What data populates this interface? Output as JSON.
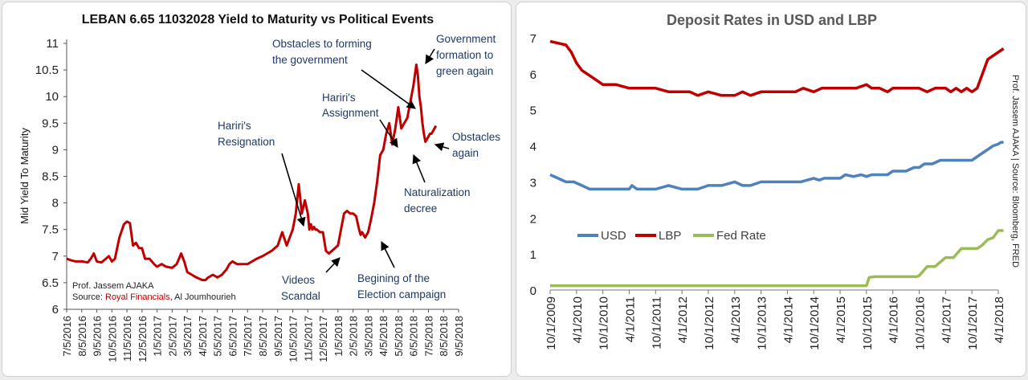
{
  "chart_data": [
    {
      "type": "line",
      "title": "LEBAN 6.65 11032028 Yield to Maturity vs Political Events",
      "ylabel": "Mid Yield To Maturity",
      "ylim": [
        6,
        11
      ],
      "yticks": [
        "11",
        "10.5",
        "10",
        "9.5",
        "9",
        "8.5",
        "8",
        "7.5",
        "7",
        "6.5",
        "6"
      ],
      "xtick_labels": [
        "7/5/2016",
        "8/5/2016",
        "9/5/2016",
        "10/5/2016",
        "11/5/2016",
        "12/5/2016",
        "1/5/2017",
        "2/5/2017",
        "3/5/2017",
        "4/5/2017",
        "5/5/2017",
        "6/5/2017",
        "7/5/2017",
        "8/5/2017",
        "9/5/2017",
        "10/5/2017",
        "11/5/2017",
        "12/5/2017",
        "1/5/2018",
        "2/5/2018",
        "3/5/2018",
        "4/5/2018",
        "5/5/2018",
        "6/5/2018",
        "7/5/2018",
        "8/5/2018",
        "9/5/2018"
      ],
      "series": [
        {
          "color": "#c00000",
          "x": [
            0,
            0.3,
            0.6,
            1,
            1.4,
            1.6,
            1.8,
            2,
            2.3,
            2.6,
            2.8,
            3,
            3.2,
            3.5,
            3.8,
            4,
            4.2,
            4.4,
            4.6,
            4.8,
            5,
            5.2,
            5.5,
            5.8,
            6,
            6.3,
            6.6,
            7,
            7.3,
            7.6,
            7.8,
            8,
            8.3,
            8.6,
            9,
            9.2,
            9.4,
            9.7,
            10,
            10.3,
            10.6,
            10.8,
            11,
            11.3,
            11.6,
            12,
            12.3,
            12.6,
            13,
            13.3,
            13.6,
            14,
            14.3,
            14.6,
            15,
            15.2,
            15.4,
            15.6,
            15.8,
            16,
            16.1,
            16.2,
            16.3,
            16.4,
            16.5,
            16.6,
            16.8,
            17,
            17.2,
            17.4,
            17.6,
            17.8,
            18,
            18.2,
            18.4,
            18.6,
            18.8,
            19,
            19.2,
            19.4,
            19.5,
            19.6,
            19.8,
            20,
            20.2,
            20.4,
            20.6,
            20.8,
            21,
            21.2,
            21.4,
            21.6,
            21.8,
            22,
            22.2,
            22.4,
            22.6,
            22.8,
            23,
            23.2,
            23.3,
            23.4,
            23.5,
            23.6,
            23.7,
            23.8,
            23.9,
            24,
            24.1,
            24.2,
            24.3,
            24.4,
            24.5
          ],
          "values": [
            6.95,
            6.92,
            6.9,
            6.9,
            6.88,
            6.95,
            7.05,
            6.9,
            6.88,
            6.95,
            7.0,
            6.9,
            6.95,
            7.35,
            7.6,
            7.65,
            7.62,
            7.2,
            7.25,
            7.15,
            7.15,
            6.95,
            6.95,
            6.85,
            6.8,
            6.85,
            6.8,
            6.78,
            6.85,
            7.05,
            6.9,
            6.7,
            6.65,
            6.6,
            6.55,
            6.55,
            6.6,
            6.65,
            6.6,
            6.65,
            6.75,
            6.85,
            6.9,
            6.85,
            6.85,
            6.85,
            6.9,
            6.95,
            7.0,
            7.05,
            7.1,
            7.2,
            7.45,
            7.2,
            7.5,
            7.8,
            8.35,
            7.8,
            8.05,
            7.8,
            7.5,
            7.6,
            7.5,
            7.55,
            7.5,
            7.5,
            7.45,
            7.45,
            7.1,
            7.05,
            7.1,
            7.15,
            7.2,
            7.5,
            7.8,
            7.85,
            7.8,
            7.8,
            7.75,
            7.5,
            7.4,
            7.45,
            7.35,
            7.45,
            7.7,
            8.0,
            8.4,
            8.9,
            9.0,
            9.3,
            9.5,
            9.1,
            9.4,
            9.8,
            9.4,
            9.5,
            9.6,
            9.9,
            10.2,
            10.6,
            10.4,
            10.0,
            9.8,
            9.5,
            9.3,
            9.15,
            9.2,
            9.25,
            9.3,
            9.3,
            9.35,
            9.4,
            9.45
          ]
        }
      ],
      "annotations": [
        {
          "lines": [
            "Hariri's",
            "Resignation"
          ]
        },
        {
          "lines": [
            "Videos",
            "Scandal"
          ]
        },
        {
          "lines": [
            "Hariri's",
            "Assignment"
          ]
        },
        {
          "lines": [
            "Obstacles to forming",
            "the government"
          ]
        },
        {
          "lines": [
            "Government",
            "formation to",
            "green again"
          ]
        },
        {
          "lines": [
            "Obstacles",
            "again"
          ]
        },
        {
          "lines": [
            "Naturalization",
            "decree"
          ]
        },
        {
          "lines": [
            "Begining of the",
            "Election campaign"
          ]
        }
      ],
      "credit": {
        "line1": "Prof. Jassem AJAKA",
        "source_prefix": "Source: ",
        "source_highlight": "Royal Financials",
        "source_rest": ", Al Joumhourieh"
      }
    },
    {
      "type": "line",
      "title": "Deposit Rates in USD and LBP",
      "ylim": [
        0,
        7
      ],
      "yticks": [
        "7",
        "6",
        "5",
        "4",
        "3",
        "2",
        "1",
        "0"
      ],
      "xtick_labels": [
        "10/1/2009",
        "4/1/2010",
        "10/1/2010",
        "4/1/2011",
        "10/1/2011",
        "4/1/2012",
        "10/1/2012",
        "4/1/2013",
        "10/1/2013",
        "4/1/2014",
        "10/1/2014",
        "4/1/2015",
        "10/1/2015",
        "4/1/2016",
        "10/1/2016",
        "4/1/2017",
        "10/1/2017",
        "4/1/2018"
      ],
      "legend": "middle-left",
      "series": [
        {
          "name": "USD",
          "color": "#4f81bd",
          "x": [
            0,
            0.3,
            0.6,
            0.9,
            1.2,
            1.5,
            2,
            2.5,
            3,
            3.1,
            3.3,
            3.6,
            4,
            4.5,
            5,
            5.3,
            5.6,
            6,
            6.5,
            7,
            7.3,
            7.6,
            8,
            8.5,
            9,
            9.5,
            10,
            10.2,
            10.4,
            10.7,
            11,
            11.2,
            11.5,
            11.8,
            12,
            12.2,
            12.5,
            12.8,
            13,
            13.2,
            13.5,
            13.8,
            14,
            14.2,
            14.5,
            14.8,
            15,
            15.2,
            15.5,
            15.8,
            16,
            16.2,
            16.4,
            16.6,
            16.8,
            17,
            17.1,
            17.2
          ],
          "values": [
            3.2,
            3.1,
            3.0,
            3.0,
            2.9,
            2.8,
            2.8,
            2.8,
            2.8,
            2.9,
            2.8,
            2.8,
            2.8,
            2.9,
            2.8,
            2.8,
            2.8,
            2.9,
            2.9,
            3.0,
            2.9,
            2.9,
            3.0,
            3.0,
            3.0,
            3.0,
            3.1,
            3.05,
            3.1,
            3.1,
            3.1,
            3.2,
            3.15,
            3.2,
            3.15,
            3.2,
            3.2,
            3.2,
            3.3,
            3.3,
            3.3,
            3.4,
            3.4,
            3.5,
            3.5,
            3.6,
            3.6,
            3.6,
            3.6,
            3.6,
            3.6,
            3.7,
            3.8,
            3.9,
            4.0,
            4.05,
            4.1,
            4.1
          ]
        },
        {
          "name": "LBP",
          "color": "#c00000",
          "x": [
            0,
            0.3,
            0.6,
            0.8,
            1,
            1.2,
            1.4,
            1.6,
            1.8,
            2,
            2.5,
            3,
            3.3,
            3.6,
            4,
            4.5,
            5,
            5.3,
            5.6,
            6,
            6.5,
            7,
            7.3,
            7.6,
            8,
            8.5,
            9,
            9.3,
            9.6,
            10,
            10.3,
            10.6,
            11,
            11.3,
            11.6,
            12,
            12.2,
            12.5,
            12.8,
            13,
            13.3,
            13.6,
            14,
            14.3,
            14.6,
            15,
            15.2,
            15.4,
            15.6,
            15.8,
            16,
            16.2,
            16.4,
            16.6,
            16.8,
            17,
            17.2
          ],
          "values": [
            6.9,
            6.85,
            6.8,
            6.6,
            6.3,
            6.1,
            6.0,
            5.9,
            5.8,
            5.7,
            5.7,
            5.6,
            5.6,
            5.6,
            5.6,
            5.5,
            5.5,
            5.5,
            5.4,
            5.5,
            5.4,
            5.4,
            5.5,
            5.4,
            5.5,
            5.5,
            5.5,
            5.5,
            5.6,
            5.5,
            5.6,
            5.6,
            5.6,
            5.6,
            5.6,
            5.7,
            5.6,
            5.6,
            5.5,
            5.6,
            5.6,
            5.6,
            5.6,
            5.5,
            5.6,
            5.6,
            5.5,
            5.6,
            5.5,
            5.6,
            5.5,
            5.6,
            6.0,
            6.4,
            6.5,
            6.6,
            6.7
          ]
        },
        {
          "name": "Fed Rate",
          "color": "#9bbb59",
          "x": [
            0,
            1,
            2,
            3,
            4,
            5,
            6,
            7,
            8,
            9,
            10,
            11,
            12,
            12.1,
            12.3,
            12.6,
            13,
            13.5,
            13.9,
            14,
            14.3,
            14.6,
            15,
            15.3,
            15.6,
            15.9,
            16,
            16.2,
            16.4,
            16.6,
            16.8,
            17,
            17.2
          ],
          "values": [
            0.12,
            0.12,
            0.12,
            0.12,
            0.12,
            0.12,
            0.12,
            0.12,
            0.12,
            0.12,
            0.12,
            0.12,
            0.12,
            0.35,
            0.37,
            0.37,
            0.37,
            0.37,
            0.37,
            0.4,
            0.65,
            0.65,
            0.9,
            0.9,
            1.15,
            1.15,
            1.15,
            1.15,
            1.25,
            1.4,
            1.45,
            1.65,
            1.65
          ]
        }
      ],
      "side_text": "Prof. Jassem AJAKA | Source: Bloomberg, FRED"
    }
  ]
}
